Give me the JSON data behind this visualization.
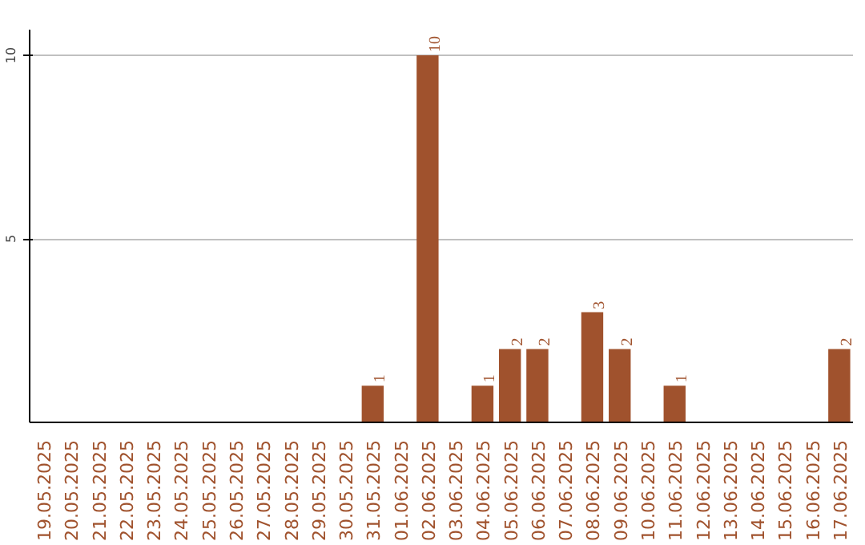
{
  "chart_data": {
    "type": "bar",
    "categories": [
      "19.05.2025",
      "20.05.2025",
      "21.05.2025",
      "22.05.2025",
      "23.05.2025",
      "24.05.2025",
      "25.05.2025",
      "26.05.2025",
      "27.05.2025",
      "28.05.2025",
      "29.05.2025",
      "30.05.2025",
      "31.05.2025",
      "01.06.2025",
      "02.06.2025",
      "03.06.2025",
      "04.06.2025",
      "05.06.2025",
      "06.06.2025",
      "07.06.2025",
      "08.06.2025",
      "09.06.2025",
      "10.06.2025",
      "11.06.2025",
      "12.06.2025",
      "13.06.2025",
      "14.06.2025",
      "15.06.2025",
      "16.06.2025",
      "17.06.2025"
    ],
    "values": [
      0,
      0,
      0,
      0,
      0,
      0,
      0,
      0,
      0,
      0,
      0,
      0,
      1,
      0,
      10,
      0,
      1,
      2,
      2,
      0,
      3,
      2,
      0,
      1,
      0,
      0,
      0,
      0,
      0,
      2
    ],
    "value_labels": [
      null,
      null,
      null,
      null,
      null,
      null,
      null,
      null,
      null,
      null,
      null,
      null,
      "1",
      null,
      "10",
      null,
      "1",
      "2",
      "2",
      null,
      "3",
      "2",
      null,
      "1",
      null,
      null,
      null,
      null,
      null,
      "2"
    ],
    "color": "#a0522d",
    "ylim": [
      0,
      10.7
    ],
    "yticks": [
      5,
      10
    ],
    "grid": "y"
  }
}
